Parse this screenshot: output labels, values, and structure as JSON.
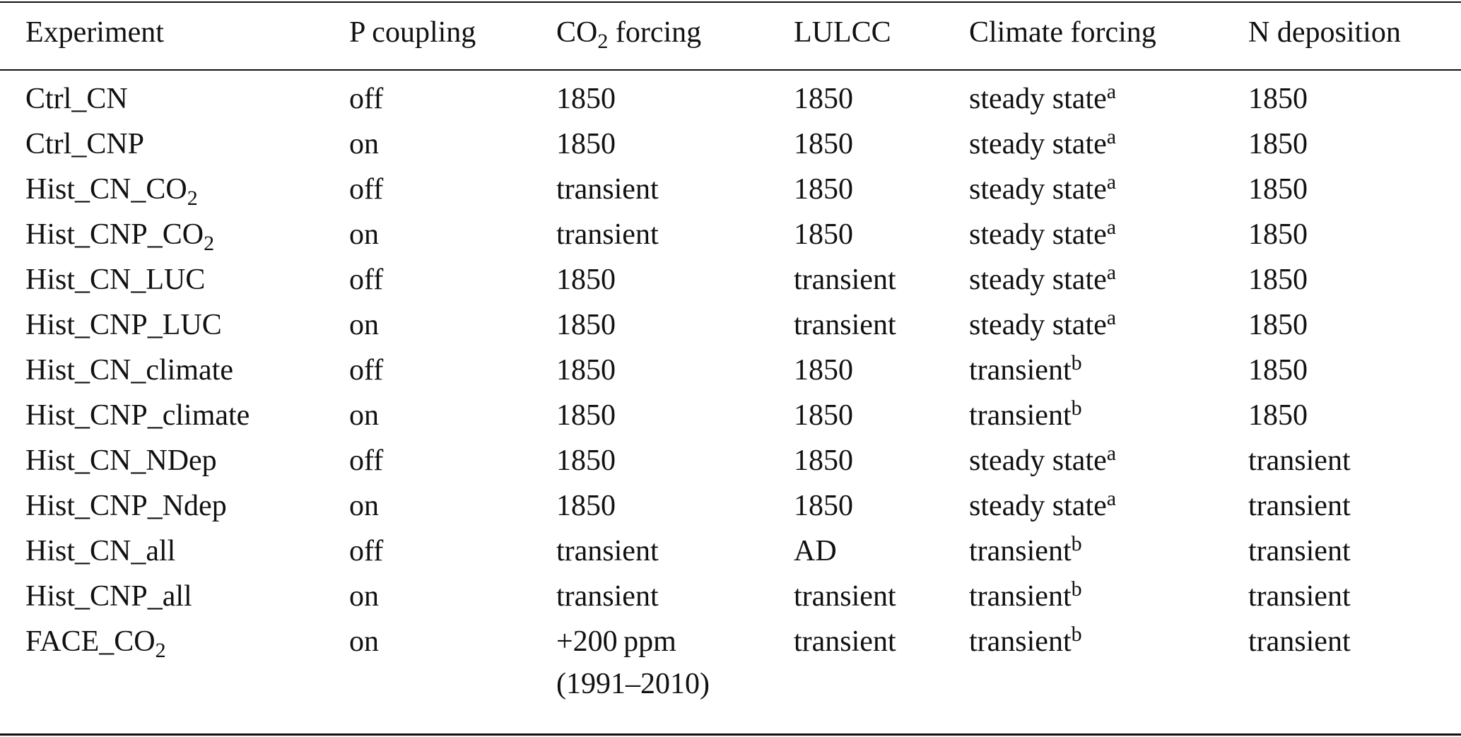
{
  "table": {
    "headers": [
      {
        "text": "Experiment"
      },
      {
        "text": "P coupling"
      },
      {
        "text": "CO",
        "sub": "2",
        "after": " forcing"
      },
      {
        "text": "LULCC"
      },
      {
        "text": "Climate forcing"
      },
      {
        "text": "N deposition"
      }
    ],
    "rows": [
      [
        {
          "text": "Ctrl_CN"
        },
        {
          "text": "off"
        },
        {
          "text": "1850"
        },
        {
          "text": "1850"
        },
        {
          "text": "steady state",
          "sup": "a"
        },
        {
          "text": "1850"
        }
      ],
      [
        {
          "text": "Ctrl_CNP"
        },
        {
          "text": "on"
        },
        {
          "text": "1850"
        },
        {
          "text": "1850"
        },
        {
          "text": "steady state",
          "sup": "a"
        },
        {
          "text": "1850"
        }
      ],
      [
        {
          "text": "Hist_CN_CO",
          "sub": "2"
        },
        {
          "text": "off"
        },
        {
          "text": "transient"
        },
        {
          "text": "1850"
        },
        {
          "text": "steady state",
          "sup": "a"
        },
        {
          "text": "1850"
        }
      ],
      [
        {
          "text": "Hist_CNP_CO",
          "sub": "2"
        },
        {
          "text": "on"
        },
        {
          "text": "transient"
        },
        {
          "text": "1850"
        },
        {
          "text": "steady state",
          "sup": "a"
        },
        {
          "text": "1850"
        }
      ],
      [
        {
          "text": "Hist_CN_LUC"
        },
        {
          "text": "off"
        },
        {
          "text": "1850"
        },
        {
          "text": "transient"
        },
        {
          "text": "steady state",
          "sup": "a"
        },
        {
          "text": "1850"
        }
      ],
      [
        {
          "text": "Hist_CNP_LUC"
        },
        {
          "text": "on"
        },
        {
          "text": "1850"
        },
        {
          "text": "transient"
        },
        {
          "text": "steady state",
          "sup": "a"
        },
        {
          "text": "1850"
        }
      ],
      [
        {
          "text": "Hist_CN_climate"
        },
        {
          "text": "off"
        },
        {
          "text": "1850"
        },
        {
          "text": "1850"
        },
        {
          "text": "transient",
          "sup": "b"
        },
        {
          "text": "1850"
        }
      ],
      [
        {
          "text": "Hist_CNP_climate"
        },
        {
          "text": "on"
        },
        {
          "text": "1850"
        },
        {
          "text": "1850"
        },
        {
          "text": "transient",
          "sup": "b"
        },
        {
          "text": "1850"
        }
      ],
      [
        {
          "text": "Hist_CN_NDep"
        },
        {
          "text": "off"
        },
        {
          "text": "1850"
        },
        {
          "text": "1850"
        },
        {
          "text": "steady state",
          "sup": "a"
        },
        {
          "text": "transient"
        }
      ],
      [
        {
          "text": "Hist_CNP_Ndep"
        },
        {
          "text": "on"
        },
        {
          "text": "1850"
        },
        {
          "text": "1850"
        },
        {
          "text": "steady state",
          "sup": "a"
        },
        {
          "text": "transient"
        }
      ],
      [
        {
          "text": "Hist_CN_all"
        },
        {
          "text": "off"
        },
        {
          "text": "transient"
        },
        {
          "text": "AD"
        },
        {
          "text": "transient",
          "sup": "b"
        },
        {
          "text": "transient"
        }
      ],
      [
        {
          "text": "Hist_CNP_all"
        },
        {
          "text": "on"
        },
        {
          "text": "transient"
        },
        {
          "text": "transient"
        },
        {
          "text": "transient",
          "sup": "b"
        },
        {
          "text": "transient"
        }
      ],
      [
        {
          "text": "FACE_CO",
          "sub": "2"
        },
        {
          "text": "on"
        },
        {
          "text": "+200 ppm",
          "line2": "(1991–2010)"
        },
        {
          "text": "transient"
        },
        {
          "text": "transient",
          "sup": "b"
        },
        {
          "text": "transient"
        }
      ]
    ]
  }
}
